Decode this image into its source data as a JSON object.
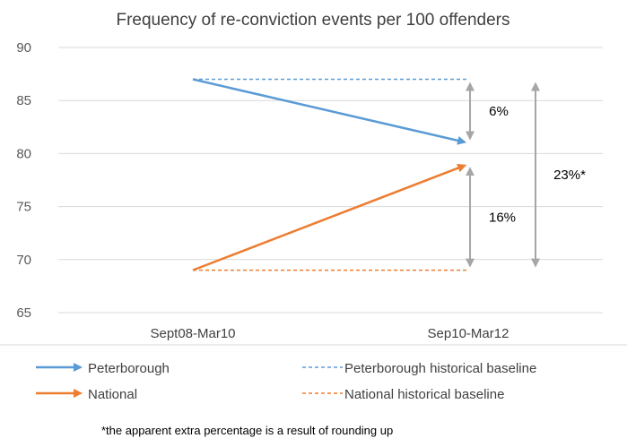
{
  "chart_data": {
    "type": "line",
    "title": "Frequency of re-conviction events per 100 offenders",
    "categories": [
      "Sept08-Mar10",
      "Sep10-Mar12"
    ],
    "ylim": [
      65,
      90
    ],
    "yticks": [
      65,
      70,
      75,
      80,
      85,
      90
    ],
    "grid": true,
    "series": [
      {
        "name": "Peterborough",
        "values": [
          87,
          81
        ],
        "color": "#5b9bd5",
        "style": "solid-arrow"
      },
      {
        "name": "Peterborough historical baseline",
        "values": [
          87,
          87
        ],
        "color": "#5b9bd5",
        "style": "dashed"
      },
      {
        "name": "National",
        "values": [
          69,
          79
        ],
        "color": "#ed7d31",
        "style": "solid-arrow"
      },
      {
        "name": "National historical baseline",
        "values": [
          69,
          69
        ],
        "color": "#ed7d31",
        "style": "dashed"
      }
    ],
    "annotations": [
      {
        "label": "6%",
        "from": 87,
        "to": 81
      },
      {
        "label": "16%",
        "from": 79,
        "to": 69
      },
      {
        "label": "23%*",
        "from": 87,
        "to": 69
      }
    ],
    "legend_position": "bottom",
    "footnote": "*the apparent extra percentage is a result of rounding up"
  }
}
